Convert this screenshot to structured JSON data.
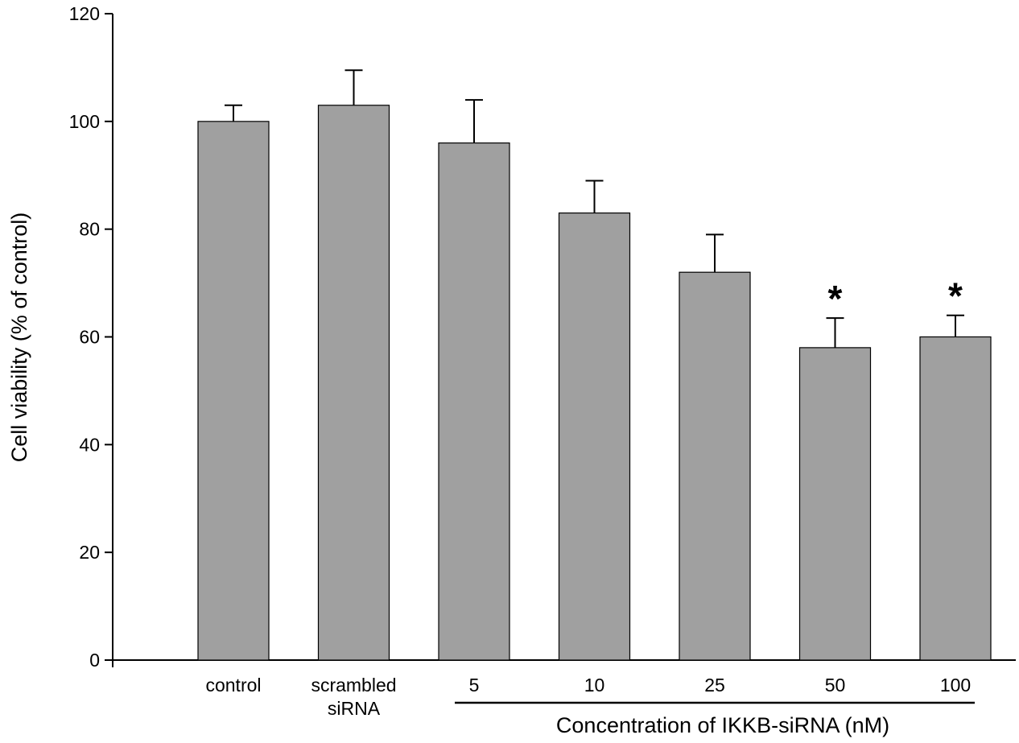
{
  "chart_data": {
    "type": "bar",
    "title": "",
    "xlabel": "",
    "ylabel": "Cell viability (% of control)",
    "ylim": [
      0,
      120
    ],
    "yticks": [
      0,
      20,
      40,
      60,
      80,
      100,
      120
    ],
    "grid": false,
    "legend": "none",
    "bar_color": "#a0a0a0",
    "categories": [
      [
        "control"
      ],
      [
        "scrambled",
        "siRNA"
      ],
      [
        "5"
      ],
      [
        "10"
      ],
      [
        "25"
      ],
      [
        "50"
      ],
      [
        "100"
      ]
    ],
    "values": [
      100,
      103,
      96,
      83,
      72,
      58,
      60
    ],
    "errors": [
      3,
      6.5,
      8,
      6,
      7,
      5.5,
      4
    ],
    "significance": [
      "",
      "",
      "",
      "",
      "",
      "*",
      "*"
    ],
    "group_label": {
      "text": "Concentration of IKKB-siRNA (nM)",
      "from_index": 2,
      "to_index": 6
    }
  }
}
